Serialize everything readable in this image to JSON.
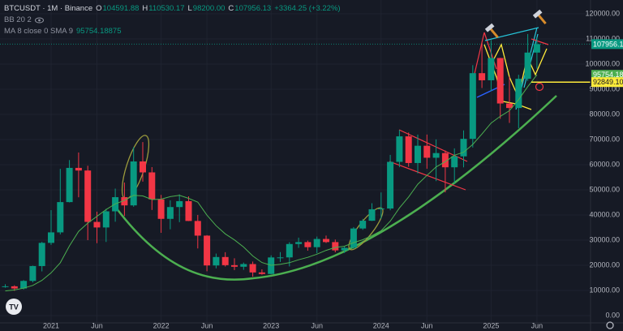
{
  "chart_data": {
    "type": "candlestick",
    "header": {
      "symbol": "BTCUSDT · 1M · Binance",
      "fields": [
        {
          "key": "O",
          "value": "104591.88"
        },
        {
          "key": "H",
          "value": "110530.17"
        },
        {
          "key": "L",
          "value": "98200.00"
        },
        {
          "key": "C",
          "value": "107956.13"
        }
      ],
      "change": "+3364.25 (+3.22%)",
      "bb_label": "BB 20 2"
    },
    "categories": [
      null,
      null,
      null,
      null,
      null,
      "2021",
      null,
      null,
      null,
      null,
      "Jun",
      null,
      null,
      null,
      null,
      null,
      null,
      "2022",
      null,
      null,
      null,
      null,
      "Jun",
      null,
      null,
      null,
      null,
      null,
      null,
      "2023",
      null,
      null,
      null,
      null,
      "Jun",
      null,
      null,
      null,
      null,
      null,
      null,
      "2024",
      null,
      null,
      null,
      null,
      "Jun",
      null,
      null,
      null,
      null,
      null,
      null,
      "2025",
      null,
      null,
      null,
      null,
      "Jun"
    ],
    "open": [
      11335,
      11650,
      10776,
      13791,
      19695,
      28923,
      33092,
      45135,
      58740,
      57694,
      37253,
      35045,
      41461,
      47100,
      43824,
      61299,
      56950,
      46216,
      38466,
      43160,
      45510,
      37630,
      31801,
      19942,
      23293,
      20050,
      19423,
      20491,
      17164,
      16542,
      23125,
      23142,
      28465,
      29233,
      27210,
      30472,
      29232,
      25941,
      26963,
      34639,
      37723,
      42283,
      42582,
      61130,
      71280,
      60672,
      67540,
      62772,
      64628,
      58974,
      63327,
      70292,
      96407,
      93576,
      102429,
      84350,
      82550,
      94172,
      104591.88
    ],
    "high": [
      12468,
      12050,
      14100,
      19863,
      29300,
      41950,
      58352,
      61844,
      64854,
      59592,
      41330,
      42448,
      50500,
      52920,
      67000,
      69000,
      59053,
      47990,
      45821,
      48189,
      47444,
      40023,
      31986,
      24668,
      25211,
      22799,
      21085,
      21480,
      18387,
      23960,
      25250,
      29184,
      31000,
      29820,
      31431,
      31804,
      30244,
      27483,
      35198,
      38450,
      44700,
      48970,
      63913,
      73777,
      72797,
      71979,
      71997,
      70080,
      65660,
      66498,
      73620,
      99588,
      108353,
      109588,
      102500,
      95000,
      95758,
      111980,
      110530.17
    ],
    "low": [
      11100,
      9825,
      10370,
      13195,
      17572,
      28130,
      32296,
      45000,
      47044,
      30000,
      28805,
      29278,
      37332,
      39600,
      43283,
      53256,
      42000,
      32917,
      34322,
      37155,
      37578,
      26700,
      17622,
      18782,
      19520,
      18125,
      18190,
      15476,
      16256,
      16499,
      21351,
      19549,
      26942,
      25811,
      24800,
      28861,
      25166,
      24901,
      26538,
      34097,
      37615,
      38555,
      41884,
      59005,
      59191,
      56552,
      58402,
      53485,
      49000,
      52550,
      58946,
      66835,
      90500,
      89256,
      78258,
      76606,
      74508,
      93346,
      98200
    ],
    "close": [
      11650,
      10776,
      13791,
      19695,
      28923,
      33092,
      45135,
      58740,
      57694,
      37253,
      35045,
      41461,
      47100,
      43824,
      61299,
      56950,
      46216,
      38466,
      43160,
      45510,
      37630,
      31801,
      19942,
      23293,
      20050,
      19423,
      20491,
      17164,
      16542,
      23125,
      23142,
      28465,
      29233,
      27210,
      30472,
      29232,
      25941,
      26963,
      34639,
      37723,
      42283,
      42582,
      61130,
      71280,
      60672,
      67540,
      62772,
      64628,
      58974,
      63327,
      70292,
      96407,
      93576,
      102429,
      84350,
      82550,
      94172,
      104591.88,
      107956.13
    ],
    "colors": {
      "up": "#089981",
      "down": "#f23645"
    },
    "ma": {
      "label": "MA 8 close 0 SMA 9",
      "color": "#4caf50",
      "values": [
        9800,
        10200,
        10900,
        12000,
        14000,
        17000,
        21000,
        27725,
        33481,
        36790,
        39447,
        42168,
        44440,
        45782,
        47802,
        47578,
        46144,
        46295,
        47310,
        47816,
        46632,
        45129,
        39959,
        35752,
        32482,
        30101,
        27268,
        23724,
        21088,
        20004,
        20404,
        21050,
        22198,
        23172,
        24419,
        25928,
        27103,
        27582,
        29019,
        30177,
        31808,
        33729,
        37562,
        42818,
        47159,
        52231,
        55748,
        59111,
        61197,
        63790,
        64936,
        68077,
        72190,
        76551,
        79248,
        81488,
        85888,
        91046,
        95754.18875
      ]
    },
    "hline": {
      "value": 92849.1,
      "label": "92849.10",
      "color": "#ffeb3b"
    },
    "ylim": [
      -2900,
      125500
    ],
    "yticks": [
      {
        "value": 0,
        "label": "0.00"
      },
      {
        "value": 10000,
        "label": "10000.00"
      },
      {
        "value": 20000,
        "label": "20000.00"
      },
      {
        "value": 30000,
        "label": "30000.00"
      },
      {
        "value": 40000,
        "label": "40000.00"
      },
      {
        "value": 50000,
        "label": "50000.00"
      },
      {
        "value": 60000,
        "label": "60000.00"
      },
      {
        "value": 70000,
        "label": "70000.00"
      },
      {
        "value": 80000,
        "label": "80000.00"
      },
      {
        "value": 90000,
        "label": "90000.00"
      },
      {
        "value": 100000,
        "label": "100000.00"
      },
      {
        "value": 110000,
        "label": "110000.00"
      },
      {
        "value": 120000,
        "label": "120000.00"
      }
    ],
    "grid": true
  }
}
